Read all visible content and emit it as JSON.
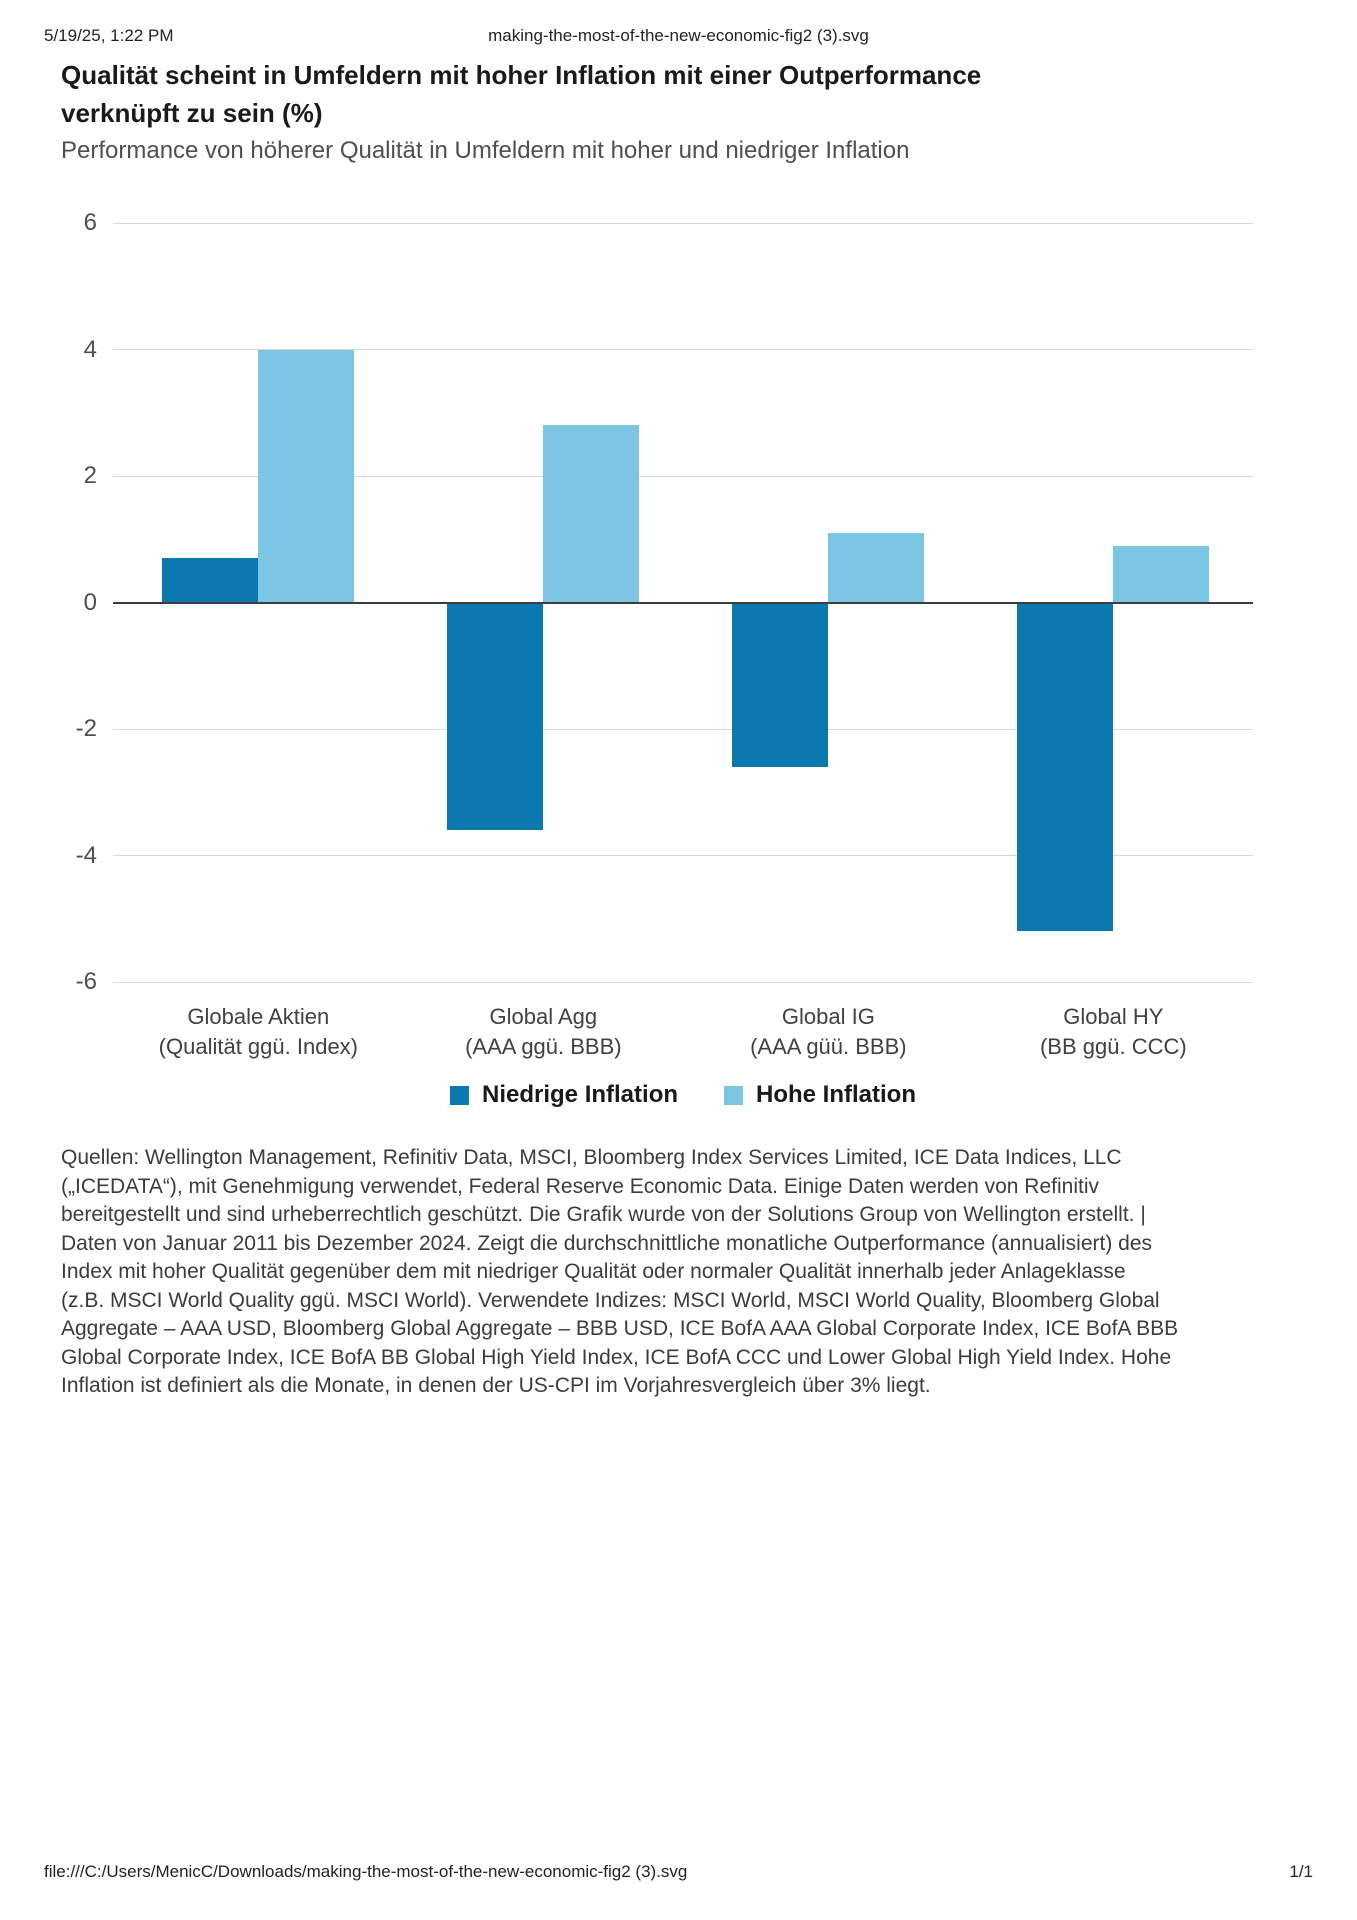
{
  "page": {
    "header": {
      "datetime": "5/19/25, 1:22 PM",
      "filename": "making-the-most-of-the-new-economic-fig2 (3).svg"
    },
    "footer": {
      "file_url": "file:///C:/Users/MenicC/Downloads/making-the-most-of-the-new-economic-fig2 (3).svg",
      "page_indicator": "1/1"
    }
  },
  "figure": {
    "title_line1": "Qualität scheint in Umfeldern mit hoher Inflation mit einer Outperformance",
    "title_line2": "verknüpft zu sein (%)",
    "subtitle": "Performance von höherer Qualität in Umfeldern mit hoher und niedriger Inflation"
  },
  "chart_data": {
    "type": "bar",
    "title": "Qualität scheint in Umfeldern mit hoher Inflation mit einer Outperformance verknüpft zu sein (%)",
    "subtitle": "Performance von höherer Qualität in Umfeldern mit hoher und niedriger Inflation",
    "categories": [
      {
        "line1": "Globale Aktien",
        "line2": "(Qualität ggü. Index)"
      },
      {
        "line1": "Global Agg",
        "line2": "(AAA ggü. BBB)"
      },
      {
        "line1": "Global IG",
        "line2": "(AAA güü. BBB)"
      },
      {
        "line1": "Global HY",
        "line2": "(BB ggü. CCC)"
      }
    ],
    "series": [
      {
        "name": "Niedrige Inflation",
        "color": "#0b79af",
        "values": [
          0.7,
          -3.6,
          -2.6,
          -5.2
        ]
      },
      {
        "name": "Hohe Inflation",
        "color": "#7cc6e4",
        "values": [
          4.0,
          2.8,
          1.1,
          0.9
        ]
      }
    ],
    "xlabel": "",
    "ylabel": "",
    "ylim": [
      -6,
      6
    ],
    "yticks": [
      6,
      4,
      2,
      0,
      -2,
      -4,
      -6
    ],
    "grid": true,
    "zero_line_color": "#3d3d3d",
    "gridline_color": "#d8d8d8",
    "legend_position": "bottom-center"
  },
  "footnote": {
    "lines": [
      "Quellen: Wellington Management, Refinitiv Data, MSCI, Bloomberg Index Services Limited, ICE Data Indices, LLC",
      "(„ICEDATA“), mit Genehmigung verwendet, Federal Reserve Economic Data. Einige Daten werden von Refinitiv",
      "bereitgestellt und sind urheberrechtlich geschützt. Die Grafik wurde von der Solutions Group von Wellington erstellt.  |",
      "Daten von Januar 2011 bis Dezember 2024. Zeigt die durchschnittliche monatliche Outperformance (annualisiert) des",
      "Index mit hoher Qualität gegenüber dem mit niedriger Qualität oder normaler Qualität innerhalb jeder Anlageklasse",
      "(z.B. MSCI World Quality ggü. MSCI World). Verwendete Indizes: MSCI World, MSCI World Quality, Bloomberg Global",
      "Aggregate – AAA USD, Bloomberg Global Aggregate – BBB USD, ICE BofA AAA Global Corporate Index, ICE BofA BBB",
      "Global Corporate Index, ICE BofA BB Global High Yield Index, ICE BofA CCC und Lower Global High Yield Index. Hohe",
      "Inflation ist definiert als die Monate, in denen der US-CPI im Vorjahresvergleich über 3% liegt."
    ]
  }
}
